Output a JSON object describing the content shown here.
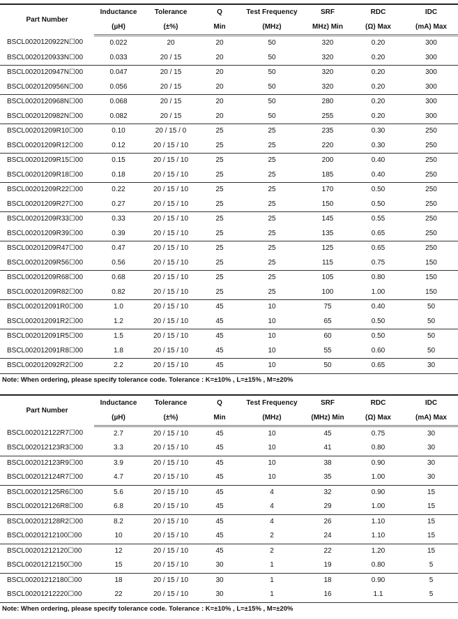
{
  "columns": {
    "part_number": "Part Number",
    "inductance": [
      "Inductance",
      "(µH)"
    ],
    "tolerance": [
      "Tolerance",
      "(±%)"
    ],
    "q": [
      "Q",
      "Min"
    ],
    "test_frequency": [
      "Test Frequency",
      "(MHz)"
    ],
    "srf": [
      "SRF",
      "MHz) Min"
    ],
    "srf2": [
      "SRF",
      "(MHz) Min"
    ],
    "rdc": [
      "RDC",
      "(Ω) Max"
    ],
    "idc": [
      "IDC",
      "(mA) Max"
    ]
  },
  "note": "Note: When ordering, please specify tolerance code. Tolerance : K=±10% , L=±15% , M=±20%",
  "table1": [
    [
      "BSCL0020120922N☐00",
      "0.022",
      "20",
      "20",
      "50",
      "320",
      "0.20",
      "300"
    ],
    [
      "BSCL0020120933N☐00",
      "0.033",
      "20 / 15",
      "20",
      "50",
      "320",
      "0.20",
      "300"
    ],
    [
      "BSCL0020120947N☐00",
      "0.047",
      "20 / 15",
      "20",
      "50",
      "320",
      "0.20",
      "300"
    ],
    [
      "BSCL0020120956N☐00",
      "0.056",
      "20 / 15",
      "20",
      "50",
      "320",
      "0.20",
      "300"
    ],
    [
      "BSCL0020120968N☐00",
      "0.068",
      "20 / 15",
      "20",
      "50",
      "280",
      "0.20",
      "300"
    ],
    [
      "BSCL0020120982N☐00",
      "0.082",
      "20 / 15",
      "20",
      "50",
      "255",
      "0.20",
      "300"
    ],
    [
      "BSCL00201209R10☐00",
      "0.10",
      "20 / 15 / 0",
      "25",
      "25",
      "235",
      "0.30",
      "250"
    ],
    [
      "BSCL00201209R12☐00",
      "0.12",
      "20 / 15 / 10",
      "25",
      "25",
      "220",
      "0.30",
      "250"
    ],
    [
      "BSCL00201209R15☐00",
      "0.15",
      "20 / 15 / 10",
      "25",
      "25",
      "200",
      "0.40",
      "250"
    ],
    [
      "BSCL00201209R18☐00",
      "0.18",
      "20 / 15 / 10",
      "25",
      "25",
      "185",
      "0.40",
      "250"
    ],
    [
      "BSCL00201209R22☐00",
      "0.22",
      "20 / 15 / 10",
      "25",
      "25",
      "170",
      "0.50",
      "250"
    ],
    [
      "BSCL00201209R27☐00",
      "0.27",
      "20 / 15 / 10",
      "25",
      "25",
      "150",
      "0.50",
      "250"
    ],
    [
      "BSCL00201209R33☐00",
      "0.33",
      "20 / 15 / 10",
      "25",
      "25",
      "145",
      "0.55",
      "250"
    ],
    [
      "BSCL00201209R39☐00",
      "0.39",
      "20 / 15 / 10",
      "25",
      "25",
      "135",
      "0.65",
      "250"
    ],
    [
      "BSCL00201209R47☐00",
      "0.47",
      "20 / 15 / 10",
      "25",
      "25",
      "125",
      "0.65",
      "250"
    ],
    [
      "BSCL00201209R56☐00",
      "0.56",
      "20 / 15 / 10",
      "25",
      "25",
      "115",
      "0.75",
      "150"
    ],
    [
      "BSCL00201209R68☐00",
      "0.68",
      "20 / 15 / 10",
      "25",
      "25",
      "105",
      "0.80",
      "150"
    ],
    [
      "BSCL00201209R82☐00",
      "0.82",
      "20 / 15 / 10",
      "25",
      "25",
      "100",
      "1.00",
      "150"
    ],
    [
      "BSCL002012091R0☐00",
      "1.0",
      "20 / 15 / 10",
      "45",
      "10",
      "75",
      "0.40",
      "50"
    ],
    [
      "BSCL002012091R2☐00",
      "1.2",
      "20 / 15 / 10",
      "45",
      "10",
      "65",
      "0.50",
      "50"
    ],
    [
      "BSCL002012091R5☐00",
      "1.5",
      "20 / 15 / 10",
      "45",
      "10",
      "60",
      "0.50",
      "50"
    ],
    [
      "BSCL002012091R8☐00",
      "1.8",
      "20 / 15 / 10",
      "45",
      "10",
      "55",
      "0.60",
      "50"
    ],
    [
      "BSCL002012092R2☐00",
      "2.2",
      "20 / 15 / 10",
      "45",
      "10",
      "50",
      "0.65",
      "30"
    ]
  ],
  "table2": [
    [
      "BSCL002012122R7☐00",
      "2.7",
      "20 / 15 / 10",
      "45",
      "10",
      "45",
      "0.75",
      "30"
    ],
    [
      "BSCL002012123R3☐00",
      "3.3",
      "20 / 15 / 10",
      "45",
      "10",
      "41",
      "0.80",
      "30"
    ],
    [
      "BSCL002012123R9☐00",
      "3.9",
      "20 / 15 / 10",
      "45",
      "10",
      "38",
      "0.90",
      "30"
    ],
    [
      "BSCL002012124R7☐00",
      "4.7",
      "20 / 15 / 10",
      "45",
      "10",
      "35",
      "1.00",
      "30"
    ],
    [
      "BSCL002012125R6☐00",
      "5.6",
      "20 / 15 / 10",
      "45",
      "4",
      "32",
      "0.90",
      "15"
    ],
    [
      "BSCL002012126R8☐00",
      "6.8",
      "20 / 15 / 10",
      "45",
      "4",
      "29",
      "1.00",
      "15"
    ],
    [
      "BSCL002012128R2☐00",
      "8.2",
      "20 / 15 / 10",
      "45",
      "4",
      "26",
      "1.10",
      "15"
    ],
    [
      "BSCL00201212100☐00",
      "10",
      "20 / 15 / 10",
      "45",
      "2",
      "24",
      "1.10",
      "15"
    ],
    [
      "BSCL00201212120☐00",
      "12",
      "20 / 15 / 10",
      "45",
      "2",
      "22",
      "1.20",
      "15"
    ],
    [
      "BSCL00201212150☐00",
      "15",
      "20 / 15 / 10",
      "30",
      "1",
      "19",
      "0.80",
      "5"
    ],
    [
      "BSCL00201212180☐00",
      "18",
      "20 / 15 / 10",
      "30",
      "1",
      "18",
      "0.90",
      "5"
    ],
    [
      "BSCL00201212220☐00",
      "22",
      "20 / 15 / 10",
      "30",
      "1",
      "16",
      "1.1",
      "5"
    ]
  ]
}
